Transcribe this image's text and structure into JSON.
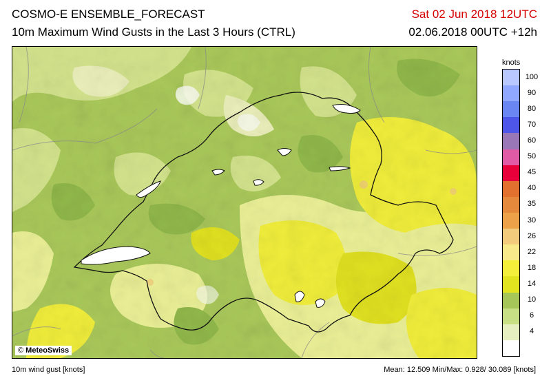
{
  "header": {
    "title": "COSMO-E ENSEMBLE_FORECAST",
    "subtitle": "10m Maximum Wind Gusts in the Last 3 Hours (CTRL)",
    "valid_time": "Sat 02 Jun 2018 12UTC",
    "run_time": "02.06.2018 00UTC +12h"
  },
  "map": {
    "copyright_symbol": "©",
    "copyright_text": "MeteoSwiss",
    "dominant_fill_colors": [
      "#a9c85a",
      "#d6e58f",
      "#eef29a",
      "#f4ef3a",
      "#e3e21f"
    ]
  },
  "legend": {
    "unit": "knots",
    "levels": [
      {
        "label": "100",
        "color": "#b9c8ff"
      },
      {
        "label": "90",
        "color": "#90a8ff"
      },
      {
        "label": "80",
        "color": "#6a86f2"
      },
      {
        "label": "70",
        "color": "#4d56e8"
      },
      {
        "label": "60",
        "color": "#9a78b8"
      },
      {
        "label": "50",
        "color": "#e05aa5"
      },
      {
        "label": "45",
        "color": "#e8003a"
      },
      {
        "label": "40",
        "color": "#e2712f"
      },
      {
        "label": "35",
        "color": "#e58a3d"
      },
      {
        "label": "30",
        "color": "#eda24a"
      },
      {
        "label": "26",
        "color": "#f2cc7c"
      },
      {
        "label": "22",
        "color": "#f8ea8a"
      },
      {
        "label": "18",
        "color": "#f4ef3a"
      },
      {
        "label": "14",
        "color": "#e1e41e"
      },
      {
        "label": "10",
        "color": "#a6c65a"
      },
      {
        "label": "6",
        "color": "#c9df86"
      },
      {
        "label": "4",
        "color": "#e5efbf"
      },
      {
        "label": "",
        "color": "#ffffff"
      }
    ]
  },
  "footer": {
    "variable": "10m wind gust [knots]",
    "stats": "Mean:  12.509 Min/Max:   0.928/ 30.089 [knots]"
  }
}
